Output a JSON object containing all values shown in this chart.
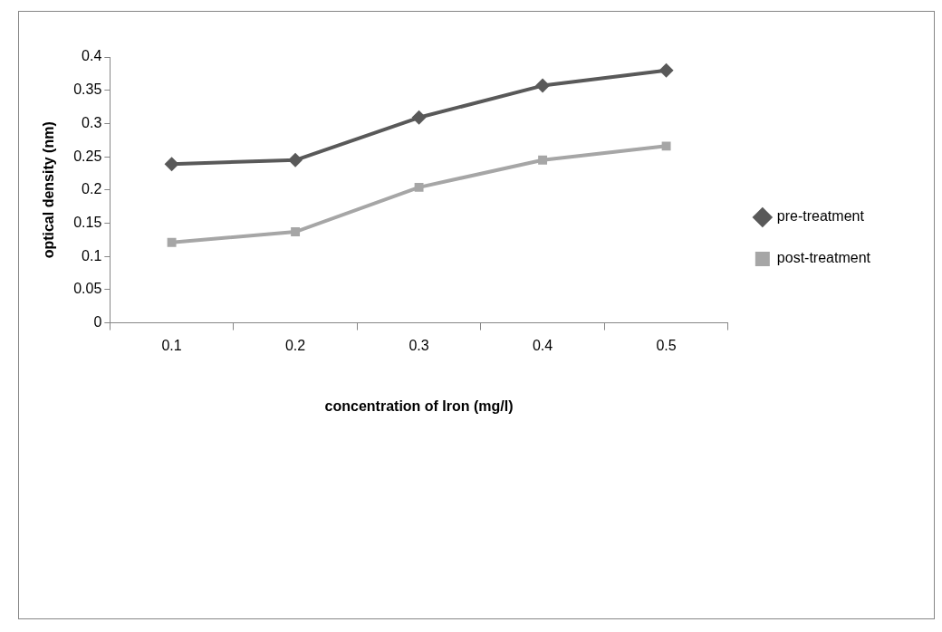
{
  "chart_data": {
    "type": "line",
    "xlabel": "concentration of Iron (mg/l)",
    "ylabel": "optical density (nm)",
    "categories": [
      "0.1",
      "0.2",
      "0.3",
      "0.4",
      "0.5"
    ],
    "series": [
      {
        "name": "pre-treatment",
        "color": "#595959",
        "marker": "diamond",
        "values": [
          0.239,
          0.245,
          0.309,
          0.357,
          0.38
        ]
      },
      {
        "name": "post-treatment",
        "color": "#a6a6a6",
        "marker": "square",
        "values": [
          0.121,
          0.137,
          0.204,
          0.245,
          0.266
        ]
      }
    ],
    "ylim": [
      0,
      0.4
    ],
    "yticks": [
      0,
      0.05,
      0.1,
      0.15,
      0.2,
      0.25,
      0.3,
      0.35,
      0.4
    ],
    "grid": false,
    "legend": "right",
    "line_style": "solid"
  }
}
